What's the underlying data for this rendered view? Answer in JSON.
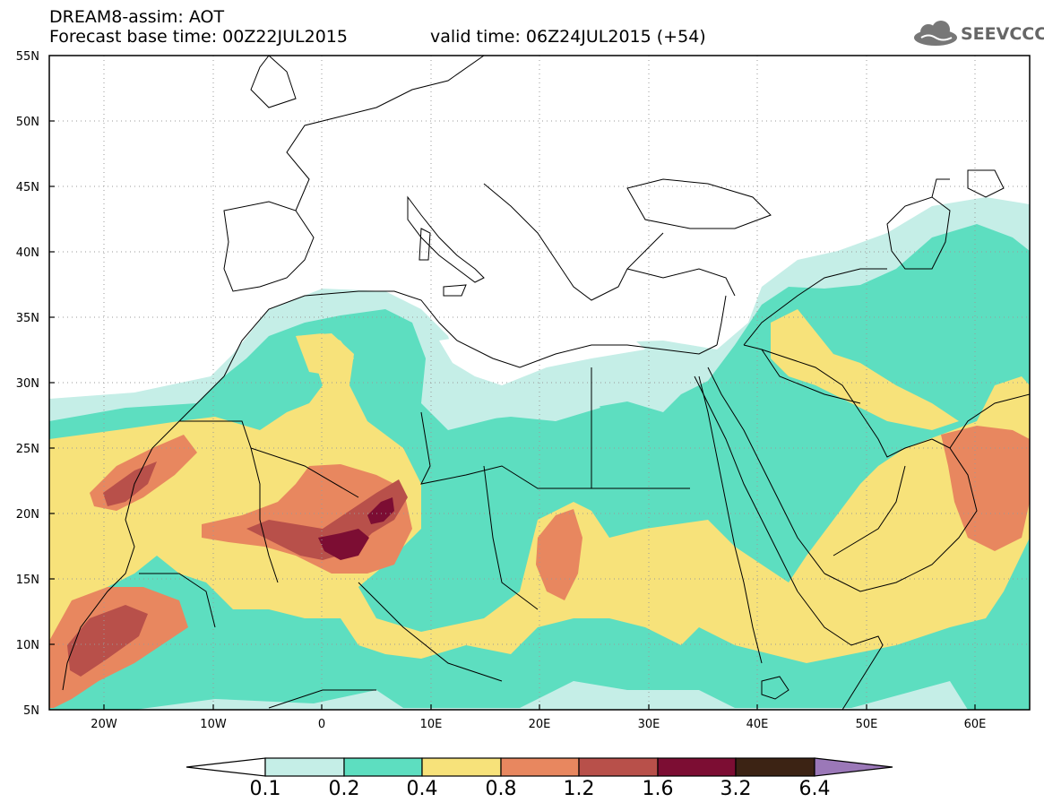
{
  "header": {
    "title": "DREAM8-assim: AOT",
    "base_time": "Forecast base time: 00Z22JUL2015",
    "valid_time": "valid time: 06Z24JUL2015 (+54)",
    "logo_text": "SEEVCCC"
  },
  "map": {
    "lon_range": [
      -25,
      65
    ],
    "lat_range": [
      5,
      55
    ],
    "x_tick_labels": [
      "20W",
      "10W",
      "0",
      "10E",
      "20E",
      "30E",
      "40E",
      "50E",
      "60E"
    ],
    "y_tick_labels": [
      "55N",
      "50N",
      "45N",
      "40N",
      "35N",
      "30N",
      "25N",
      "20N",
      "15N",
      "10N",
      "5N"
    ],
    "grid": "dotted"
  },
  "colorbar": {
    "labels": [
      "0.1",
      "0.2",
      "0.4",
      "0.8",
      "1.2",
      "1.6",
      "3.2",
      "6.4"
    ],
    "colors": [
      "#ffffff",
      "#c5eee7",
      "#5ddec0",
      "#f7e27a",
      "#e8875f",
      "#b8504a",
      "#7c0d33",
      "#3c2314",
      "#9b78b8"
    ]
  },
  "colors": {
    "c01": "#c5eee7",
    "c02": "#5ddec0",
    "c04": "#f7e27a",
    "c08": "#e8875f",
    "c12": "#b8504a",
    "c16": "#7c0d33"
  }
}
